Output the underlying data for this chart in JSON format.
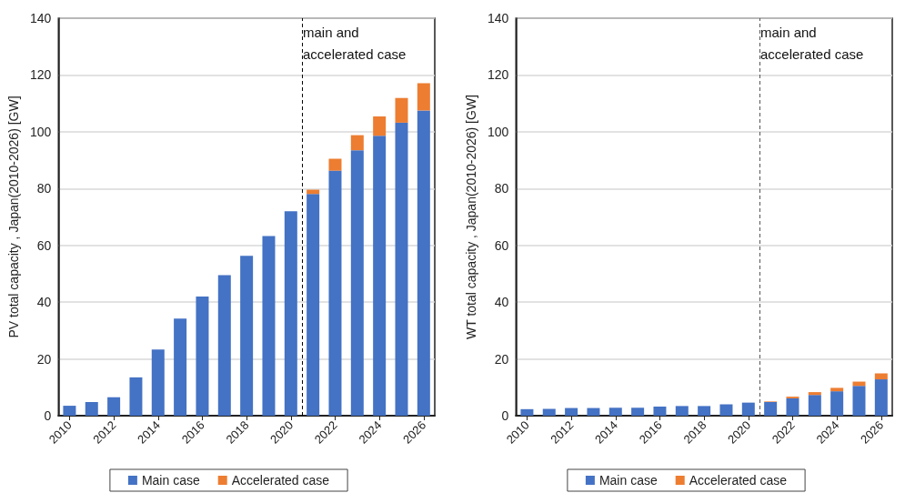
{
  "chart_data": [
    {
      "type": "bar",
      "ylabel": "PV total capacity , Japan(2010-2026) [GW]",
      "x": [
        2010,
        2011,
        2012,
        2013,
        2014,
        2015,
        2016,
        2017,
        2018,
        2019,
        2020,
        2021,
        2022,
        2023,
        2024,
        2025,
        2026
      ],
      "xlim": [
        2009.5,
        2026.5
      ],
      "xticks": [
        2010,
        2012,
        2014,
        2016,
        2018,
        2020,
        2022,
        2024,
        2026
      ],
      "ylim": [
        0,
        140
      ],
      "yticks": [
        0,
        20,
        40,
        60,
        80,
        100,
        120,
        140
      ],
      "stacked": true,
      "grid": "y",
      "legend": "bottom",
      "series": [
        {
          "name": "Main case",
          "color": "#4472c4",
          "values": [
            3.5,
            4.8,
            6.5,
            13.5,
            23.3,
            34.2,
            42.0,
            49.5,
            56.3,
            63.3,
            72.0,
            78.1,
            86.3,
            93.5,
            98.6,
            103.2,
            107.5
          ]
        },
        {
          "name": "Accelerated case",
          "color": "#ed7d31",
          "values": [
            null,
            null,
            null,
            null,
            null,
            null,
            null,
            null,
            null,
            null,
            null,
            1.5,
            4.2,
            5.3,
            6.8,
            8.7,
            9.6
          ]
        }
      ],
      "ref_lines": [
        {
          "axis": "x",
          "value": 2020.5,
          "label": "main and accelerated case",
          "line_style": "dashed",
          "color": "#000000"
        }
      ]
    },
    {
      "type": "bar",
      "ylabel": "WT total capacity , Japan(2010-2026) [GW]",
      "x": [
        2010,
        2011,
        2012,
        2013,
        2014,
        2015,
        2016,
        2017,
        2018,
        2019,
        2020,
        2021,
        2022,
        2023,
        2024,
        2025,
        2026
      ],
      "xlim": [
        2009.5,
        2026.5
      ],
      "xticks": [
        2010,
        2012,
        2014,
        2016,
        2018,
        2020,
        2022,
        2024,
        2026
      ],
      "ylim": [
        0,
        140
      ],
      "yticks": [
        0,
        20,
        40,
        60,
        80,
        100,
        120,
        140
      ],
      "stacked": true,
      "grid": "y",
      "legend": "bottom",
      "series": [
        {
          "name": "Main case",
          "color": "#4472c4",
          "values": [
            2.3,
            2.4,
            2.7,
            2.7,
            2.8,
            2.8,
            3.2,
            3.4,
            3.4,
            4.0,
            4.6,
            4.8,
            6.1,
            7.3,
            8.6,
            10.5,
            12.8
          ]
        },
        {
          "name": "Accelerated case",
          "color": "#ed7d31",
          "values": [
            null,
            null,
            null,
            null,
            null,
            null,
            null,
            null,
            null,
            null,
            null,
            0.2,
            0.6,
            1.0,
            1.2,
            1.5,
            2.1
          ]
        }
      ],
      "ref_lines": [
        {
          "axis": "x",
          "value": 2020.5,
          "label": "main and accelerated case",
          "line_style": "dashed",
          "color": "#555555"
        }
      ]
    }
  ]
}
